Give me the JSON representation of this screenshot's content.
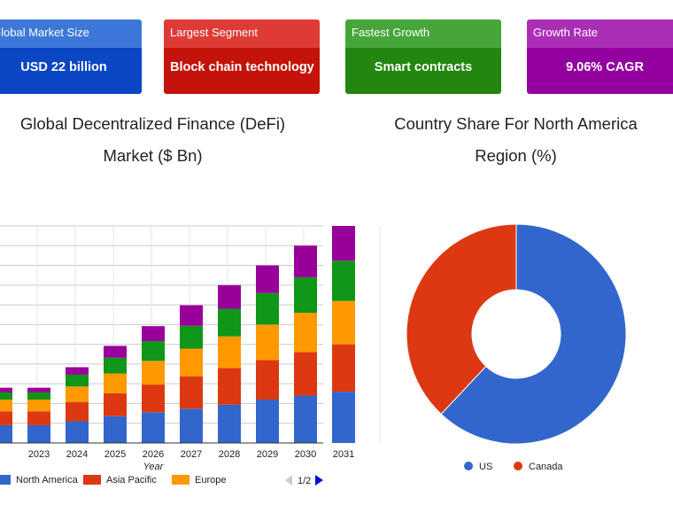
{
  "cards": {
    "market": {
      "label": "Global Market Size",
      "value": "USD 22 billion"
    },
    "segment": {
      "label": "Largest Segment",
      "value": "Block chain technology"
    },
    "growth": {
      "label": "Fastest Growth",
      "value": "Smart contracts"
    },
    "rate": {
      "label": "Growth Rate",
      "value": "9.06% CAGR"
    }
  },
  "chart_data": [
    {
      "type": "bar",
      "stacked": true,
      "title_lines": [
        "Global Decentralized Finance (DeFi)",
        "Market ($ Bn)"
      ],
      "xlabel": "Year",
      "ylabel": "",
      "categories": [
        "2023",
        "2024",
        "2025",
        "2026",
        "2027",
        "2028",
        "2029",
        "2030",
        "2031"
      ],
      "ylim": [
        0,
        55
      ],
      "grid": true,
      "legend_position": "bottom",
      "legend_pager": "1/2",
      "series": [
        {
          "name": "North America",
          "color": "#3366cc",
          "values": [
            4.5,
            5.5,
            6.8,
            7.8,
            8.7,
            9.7,
            11.0,
            12.0,
            13.0
          ]
        },
        {
          "name": "Asia Pacific",
          "color": "#dc3912",
          "values": [
            3.5,
            4.9,
            5.8,
            7.0,
            8.2,
            9.3,
            10.0,
            11.0,
            12.0
          ]
        },
        {
          "name": "Europe",
          "color": "#ff9900",
          "values": [
            3.0,
            3.9,
            5.0,
            6.0,
            7.0,
            8.0,
            9.0,
            10.0,
            11.0
          ]
        },
        {
          "name": "",
          "color": "#109618",
          "values": [
            1.8,
            3.0,
            4.0,
            5.0,
            5.8,
            7.0,
            8.0,
            9.0,
            10.2
          ]
        },
        {
          "name": "",
          "color": "#990099",
          "values": [
            1.2,
            1.9,
            3.0,
            3.8,
            5.2,
            6.0,
            7.0,
            8.0,
            8.8
          ]
        }
      ]
    },
    {
      "type": "pie",
      "donut": true,
      "title_lines": [
        "Country Share For North America",
        "Region (%)"
      ],
      "legend_position": "bottom",
      "slices": [
        {
          "label": "US",
          "value": 62,
          "color": "#3366cc"
        },
        {
          "label": "Canada",
          "value": 38,
          "color": "#dc3912"
        }
      ]
    }
  ]
}
